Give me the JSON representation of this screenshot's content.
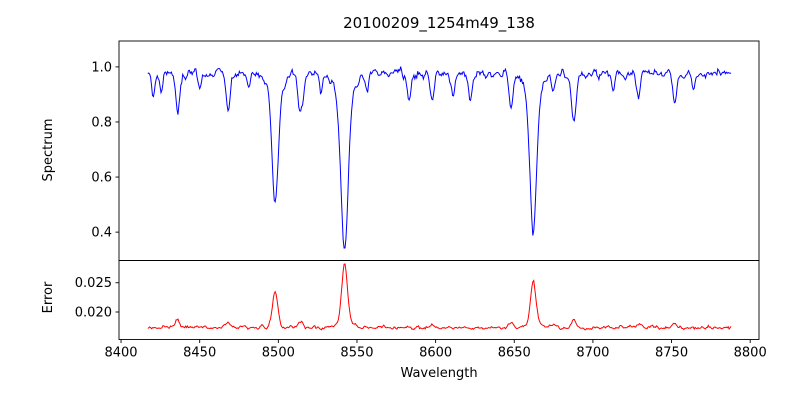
{
  "chart_data": {
    "type": "line",
    "title": "20100209_1254m49_138",
    "xlabel": "Wavelength",
    "grid": false,
    "legend": null,
    "xlim": [
      8398.7,
      8805.6
    ],
    "x_range": [
      8417,
      8788
    ],
    "x_step": 0.6,
    "xticks": {
      "values": [
        8400,
        8450,
        8500,
        8550,
        8600,
        8650,
        8700,
        8750,
        8800
      ],
      "labels": [
        "8400",
        "8450",
        "8500",
        "8550",
        "8600",
        "8650",
        "8700",
        "8750",
        "8800"
      ]
    },
    "frame_color": "#000000",
    "background": "#ffffff",
    "panels": [
      {
        "name": "spectrum",
        "ylabel": "Spectrum",
        "color": "#0000ff",
        "ylim": [
          0.297,
          1.094
        ],
        "yticks": {
          "values": [
            0.4,
            0.6,
            0.8,
            1.0
          ],
          "labels": [
            "0.4",
            "0.6",
            "0.8",
            "1.0"
          ]
        },
        "continuum": 0.981,
        "noise": {
          "seed": 42,
          "seed2": 137,
          "amp_sym": 0.022,
          "amp_dip": 0.02
        },
        "absorption_lines": [
          {
            "center": 8420.5,
            "depth": 0.075,
            "sigma": 1.0
          },
          {
            "center": 8425.5,
            "depth": 0.06,
            "sigma": 1.0
          },
          {
            "center": 8436.0,
            "depth": 0.135,
            "sigma": 1.3
          },
          {
            "center": 8450.0,
            "depth": 0.05,
            "sigma": 1.0
          },
          {
            "center": 8468.0,
            "depth": 0.135,
            "sigma": 1.3
          },
          {
            "center": 8481.0,
            "depth": 0.05,
            "sigma": 1.0
          },
          {
            "center": 8498.0,
            "depth": 0.38,
            "sigma": 1.9
          },
          {
            "center": 8498.0,
            "depth": 0.09,
            "sigma": 4.5
          },
          {
            "center": 8514.0,
            "depth": 0.15,
            "sigma": 1.5
          },
          {
            "center": 8527.0,
            "depth": 0.06,
            "sigma": 1.0
          },
          {
            "center": 8542.1,
            "depth": 0.545,
            "sigma": 2.2
          },
          {
            "center": 8542.1,
            "depth": 0.1,
            "sigma": 5.5
          },
          {
            "center": 8556.0,
            "depth": 0.06,
            "sigma": 1.0
          },
          {
            "center": 8583.0,
            "depth": 0.1,
            "sigma": 1.2
          },
          {
            "center": 8598.0,
            "depth": 0.09,
            "sigma": 1.2
          },
          {
            "center": 8611.0,
            "depth": 0.07,
            "sigma": 1.0
          },
          {
            "center": 8622.0,
            "depth": 0.1,
            "sigma": 1.2
          },
          {
            "center": 8648.0,
            "depth": 0.11,
            "sigma": 1.3
          },
          {
            "center": 8662.1,
            "depth": 0.49,
            "sigma": 2.0
          },
          {
            "center": 8662.1,
            "depth": 0.09,
            "sigma": 5.0
          },
          {
            "center": 8675.0,
            "depth": 0.07,
            "sigma": 1.0
          },
          {
            "center": 8688.0,
            "depth": 0.165,
            "sigma": 1.6
          },
          {
            "center": 8713.0,
            "depth": 0.07,
            "sigma": 1.0
          },
          {
            "center": 8729.0,
            "depth": 0.09,
            "sigma": 1.1
          },
          {
            "center": 8752.0,
            "depth": 0.11,
            "sigma": 1.2
          },
          {
            "center": 8764.0,
            "depth": 0.07,
            "sigma": 1.0
          }
        ],
        "key_values": {
          "continuum_level": 0.98,
          "deep_line_minima": [
            {
              "wavelength": 8498,
              "value": 0.505
            },
            {
              "wavelength": 8542,
              "value": 0.33
            },
            {
              "wavelength": 8662,
              "value": 0.395
            }
          ]
        }
      },
      {
        "name": "error",
        "ylabel": "Error",
        "color": "#ff0000",
        "ylim": [
          0.0153,
          0.0288
        ],
        "yticks": {
          "values": [
            0.02,
            0.025
          ],
          "labels": [
            "0.020",
            "0.025"
          ]
        },
        "baseline": 0.0172,
        "noise": {
          "seed": 7,
          "seed2": 99,
          "amp_sym": 0.00035,
          "amp_bump": 0.0005
        },
        "peaks": [
          {
            "center": 8436.0,
            "amp": 0.0013,
            "sigma": 1.4
          },
          {
            "center": 8468.0,
            "amp": 0.0009,
            "sigma": 1.4
          },
          {
            "center": 8498.0,
            "amp": 0.0059,
            "sigma": 1.7
          },
          {
            "center": 8514.0,
            "amp": 0.001,
            "sigma": 1.4
          },
          {
            "center": 8542.1,
            "amp": 0.0095,
            "sigma": 1.7
          },
          {
            "center": 8542.1,
            "amp": 0.0015,
            "sigma": 4.0
          },
          {
            "center": 8598.0,
            "amp": 0.0006,
            "sigma": 1.4
          },
          {
            "center": 8648.0,
            "amp": 0.0008,
            "sigma": 1.4
          },
          {
            "center": 8662.1,
            "amp": 0.007,
            "sigma": 1.7
          },
          {
            "center": 8662.1,
            "amp": 0.001,
            "sigma": 4.0
          },
          {
            "center": 8675.0,
            "amp": 0.0006,
            "sigma": 1.2
          },
          {
            "center": 8688.0,
            "amp": 0.0013,
            "sigma": 1.4
          },
          {
            "center": 8729.0,
            "amp": 0.0007,
            "sigma": 1.4
          },
          {
            "center": 8752.0,
            "amp": 0.0009,
            "sigma": 1.4
          }
        ],
        "key_values": {
          "baseline_level": 0.0175,
          "peak_maxima": [
            {
              "wavelength": 8498,
              "value": 0.0234
            },
            {
              "wavelength": 8542,
              "value": 0.0281
            },
            {
              "wavelength": 8662,
              "value": 0.0253
            }
          ]
        }
      }
    ]
  }
}
